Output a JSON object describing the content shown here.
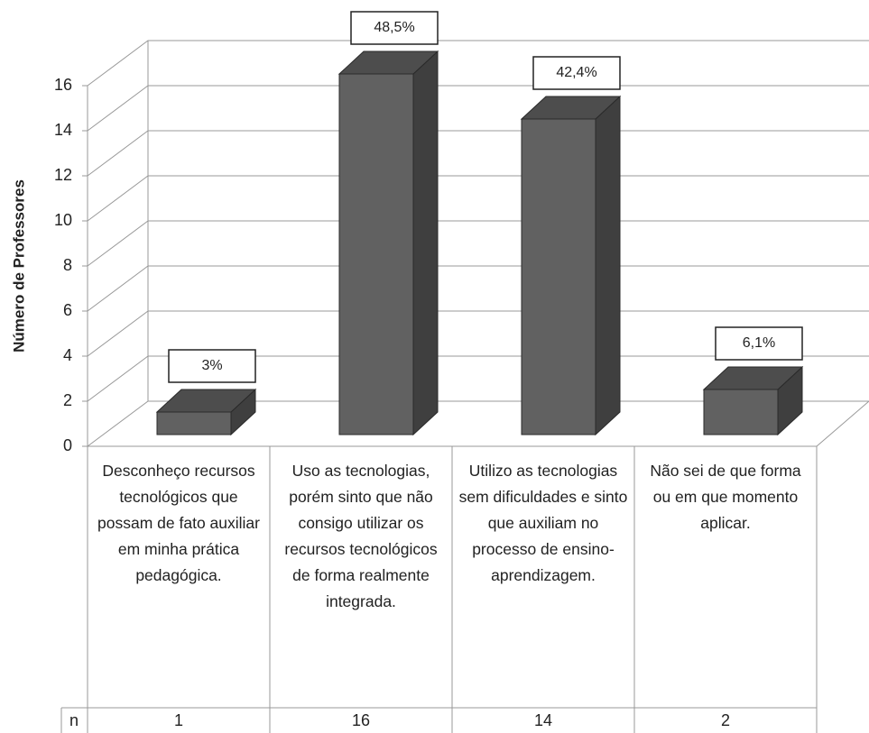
{
  "chart_data": {
    "type": "bar3d",
    "ylabel": "Número de Professores",
    "categories": [
      "Desconheço recursos tecnológicos que possam de fato auxiliar em minha prática pedagógica.",
      "Uso as tecnologias, porém sinto que não consigo utilizar os recursos tecnológicos de forma realmente integrada.",
      "Utilizo as tecnologias sem dificuldades e sinto que auxiliam no processo de ensino-aprendizagem.",
      "Não sei de que forma ou em que momento aplicar."
    ],
    "values": [
      1,
      16,
      14,
      2
    ],
    "percentages": [
      {
        "value": 3,
        "label": "3%"
      },
      {
        "value": 48.5,
        "label": "48,5%"
      },
      {
        "value": 42.4,
        "label": "42,4%"
      },
      {
        "value": 6.1,
        "label": "6,1%"
      }
    ],
    "table_row_label": "n",
    "color": "#616161",
    "ylim": [
      0,
      16
    ],
    "yticks": [
      0,
      2,
      4,
      6,
      8,
      10,
      12,
      14,
      16
    ],
    "grid": true
  }
}
